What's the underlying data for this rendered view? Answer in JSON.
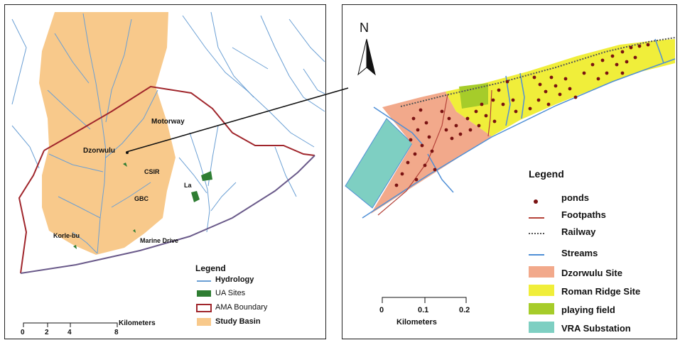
{
  "left_map": {
    "places": {
      "motorway": "Motorway",
      "dzorwulu": "Dzorwulu",
      "csir": "CSIR",
      "la": "La",
      "gbc": "GBC",
      "korle_bu": "Korle-bu",
      "marine_drive": "Marine Drive"
    },
    "legend": {
      "title": "Legend",
      "items": [
        "Hydrology",
        "UA Sites",
        "AMA Boundary",
        "Study Basin"
      ]
    },
    "scale": {
      "unit": "Kilometers",
      "ticks": [
        "0",
        "2",
        "4",
        "8"
      ]
    },
    "colors": {
      "study_basin": "#f8c98b",
      "hydrology": "#6a9fd4",
      "ua_sites": "#2e7d32",
      "ama_boundary": "#a0262c"
    }
  },
  "right_map": {
    "north_label": "N",
    "legend": {
      "title": "Legend",
      "items": [
        "ponds",
        "Footpaths",
        "Railway",
        "Streams",
        "Dzorwulu Site",
        "Roman Ridge Site",
        "playing field",
        "VRA Substation"
      ]
    },
    "scale": {
      "unit": "Kilometers",
      "ticks": [
        "0",
        "0.1",
        "0.2"
      ]
    },
    "colors": {
      "ponds": "#7a1212",
      "footpaths": "#b5433a",
      "railway": "#555555",
      "streams": "#4f8fd6",
      "dzorwulu_site": "#f2a98b",
      "roman_ridge_site": "#f0ee3a",
      "playing_field": "#a6cc2a",
      "vra_substation": "#7ecfc2"
    }
  }
}
